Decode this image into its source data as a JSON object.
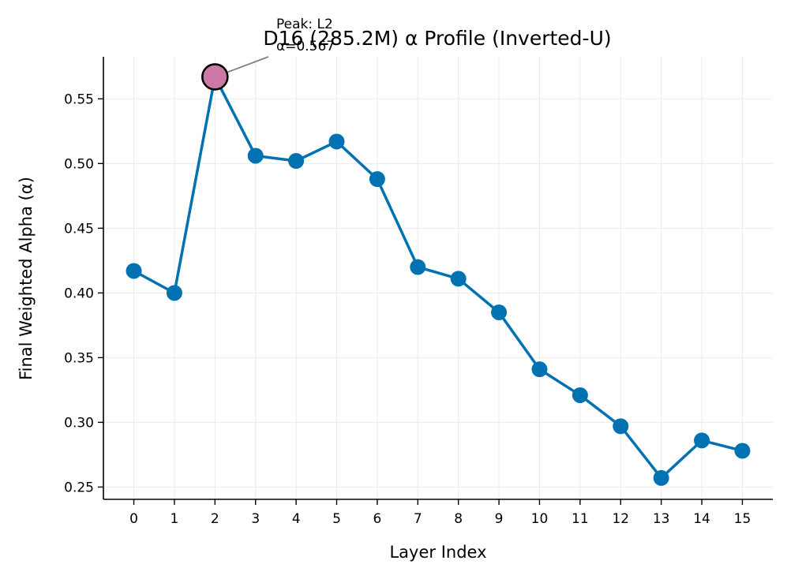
{
  "chart_data": {
    "type": "line",
    "title": "D16 (285.2M) α Profile (Inverted-U)",
    "xlabel": "Layer Index",
    "ylabel": "Final Weighted Alpha (α)",
    "x": [
      0,
      1,
      2,
      3,
      4,
      5,
      6,
      7,
      8,
      9,
      10,
      11,
      12,
      13,
      14,
      15
    ],
    "x_tick_labels": [
      "0",
      "1",
      "2",
      "3",
      "4",
      "5",
      "6",
      "7",
      "8",
      "9",
      "10",
      "11",
      "12",
      "13",
      "14",
      "15"
    ],
    "y_ticks": [
      0.25,
      0.3,
      0.35,
      0.4,
      0.45,
      0.5,
      0.55
    ],
    "y_tick_labels": [
      "0.25",
      "0.30",
      "0.35",
      "0.40",
      "0.45",
      "0.50",
      "0.55"
    ],
    "xlim": [
      -0.75,
      15.75
    ],
    "ylim": [
      0.2405,
      0.5825
    ],
    "series": [
      {
        "values": [
          0.417,
          0.4,
          0.567,
          0.506,
          0.502,
          0.517,
          0.488,
          0.42,
          0.411,
          0.385,
          0.341,
          0.321,
          0.297,
          0.257,
          0.286,
          0.278
        ],
        "color": "#0072b2"
      }
    ],
    "peak": {
      "x": 2,
      "y": 0.567,
      "color": "#cc79a7"
    },
    "annotation": {
      "line1": "Peak: L2",
      "line2": "α=0.567"
    },
    "grid": true
  }
}
